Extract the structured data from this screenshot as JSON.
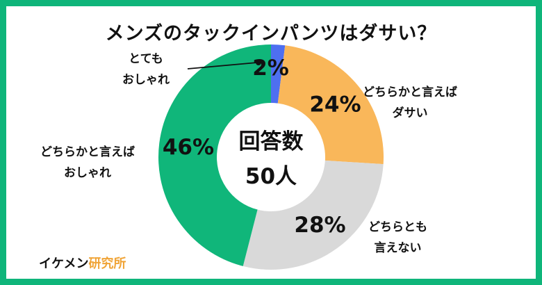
{
  "title": "メンズのタックインパンツはダサい？",
  "chart_data": {
    "type": "pie",
    "donut": true,
    "center_label": [
      "回答数",
      "50人"
    ],
    "slices": [
      {
        "label": [
          "とても",
          "おしゃれ"
        ],
        "value": 2,
        "pct_label": "2%",
        "color": "#4e6ff0"
      },
      {
        "label": [
          "どちらかと言えば",
          "ダサい"
        ],
        "value": 24,
        "pct_label": "24%",
        "color": "#f9b75a"
      },
      {
        "label": [
          "どちらとも",
          "言えない"
        ],
        "value": 28,
        "pct_label": "28%",
        "color": "#d9d9d9"
      },
      {
        "label": [
          "どちらかと言えば",
          "おしゃれ"
        ],
        "value": 46,
        "pct_label": "46%",
        "color": "#10b67a"
      }
    ]
  },
  "brand": {
    "main": "イケメン",
    "accent": "研究所"
  }
}
